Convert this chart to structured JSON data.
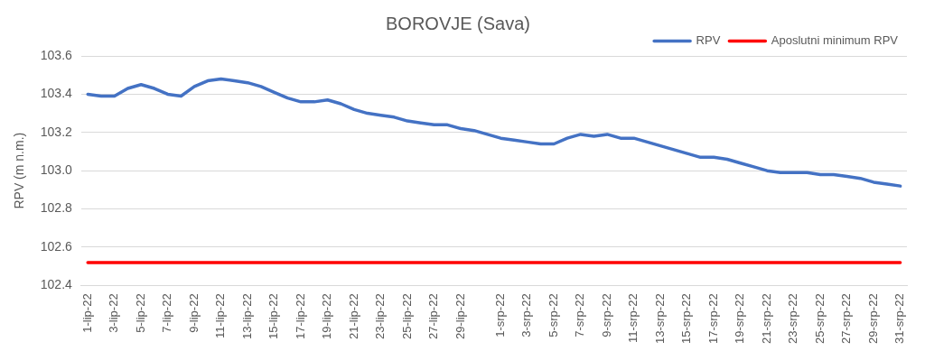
{
  "chart_data": {
    "type": "line",
    "title": "BOROVJE (Sava)",
    "ylabel": "RPV (m n.m.)",
    "categories": [
      "1-lip-22",
      null,
      "3-lip-22",
      null,
      "5-lip-22",
      null,
      "7-lip-22",
      null,
      "9-lip-22",
      null,
      "11-lip-22",
      null,
      "13-lip-22",
      null,
      "15-lip-22",
      null,
      "17-lip-22",
      null,
      "19-lip-22",
      null,
      "21-lip-22",
      null,
      "23-lip-22",
      null,
      "25-lip-22",
      null,
      "27-lip-22",
      null,
      "29-lip-22",
      null,
      null,
      "1-srp-22",
      null,
      "3-srp-22",
      null,
      "5-srp-22",
      null,
      "7-srp-22",
      null,
      "9-srp-22",
      null,
      "11-srp-22",
      null,
      "13-srp-22",
      null,
      "15-srp-22",
      null,
      "17-srp-22",
      null,
      "19-srp-22",
      null,
      "21-srp-22",
      null,
      "23-srp-22",
      null,
      "25-srp-22",
      null,
      "27-srp-22",
      null,
      "29-srp-22",
      null,
      "31-srp-22"
    ],
    "series": [
      {
        "name": "RPV",
        "color": "#4472c4",
        "values": [
          103.4,
          103.39,
          103.39,
          103.43,
          103.45,
          103.43,
          103.4,
          103.39,
          103.44,
          103.47,
          103.48,
          103.47,
          103.46,
          103.44,
          103.41,
          103.38,
          103.36,
          103.36,
          103.37,
          103.35,
          103.32,
          103.3,
          103.29,
          103.28,
          103.26,
          103.25,
          103.24,
          103.24,
          103.22,
          103.21,
          103.19,
          103.17,
          103.16,
          103.15,
          103.14,
          103.14,
          103.17,
          103.19,
          103.18,
          103.19,
          103.17,
          103.17,
          103.15,
          103.13,
          103.11,
          103.09,
          103.07,
          103.07,
          103.06,
          103.04,
          103.02,
          103.0,
          102.99,
          102.99,
          102.99,
          102.98,
          102.98,
          102.97,
          102.96,
          102.94,
          102.93,
          102.92
        ]
      },
      {
        "name": "Aposlutni minimum RPV",
        "color": "#ff0000",
        "values": [
          102.52,
          102.52,
          102.52,
          102.52,
          102.52,
          102.52,
          102.52,
          102.52,
          102.52,
          102.52,
          102.52,
          102.52,
          102.52,
          102.52,
          102.52,
          102.52,
          102.52,
          102.52,
          102.52,
          102.52,
          102.52,
          102.52,
          102.52,
          102.52,
          102.52,
          102.52,
          102.52,
          102.52,
          102.52,
          102.52,
          102.52,
          102.52,
          102.52,
          102.52,
          102.52,
          102.52,
          102.52,
          102.52,
          102.52,
          102.52,
          102.52,
          102.52,
          102.52,
          102.52,
          102.52,
          102.52,
          102.52,
          102.52,
          102.52,
          102.52,
          102.52,
          102.52,
          102.52,
          102.52,
          102.52,
          102.52,
          102.52,
          102.52,
          102.52,
          102.52,
          102.52,
          102.52
        ]
      }
    ],
    "ylim": [
      102.4,
      103.6
    ],
    "yticks": [
      102.4,
      102.6,
      102.8,
      {
        "value": 103,
        "label": "103.0"
      },
      103.2,
      103.4,
      103.6
    ],
    "grid": "y",
    "legend": "top right",
    "marker": "none",
    "line_style": "solid"
  }
}
